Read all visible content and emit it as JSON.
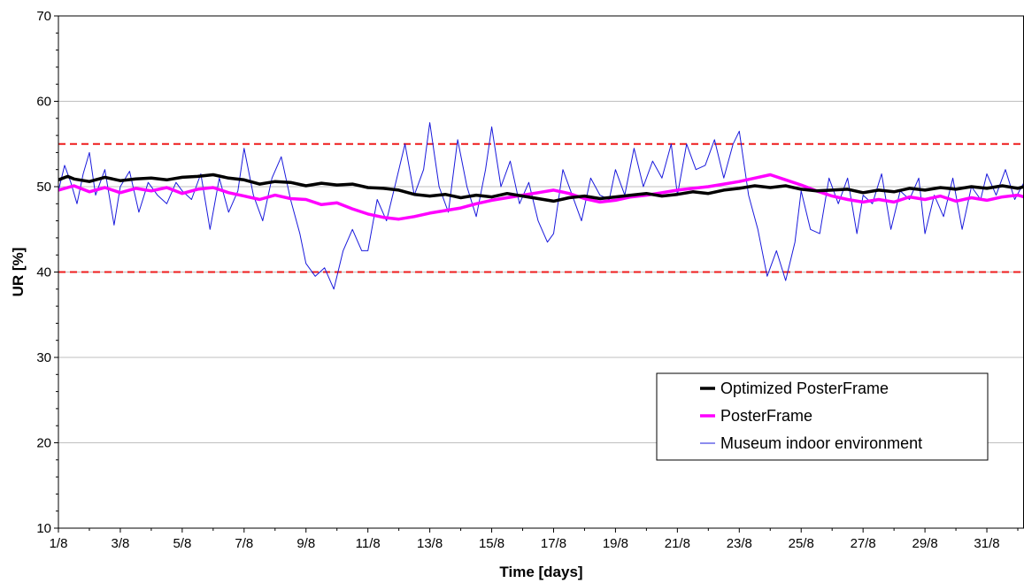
{
  "chart_data": {
    "type": "line",
    "title": "",
    "xlabel": "Time [days]",
    "ylabel": "UR [%]",
    "xlim": [
      1,
      32.2
    ],
    "ylim": [
      10,
      70
    ],
    "yticks": [
      10,
      20,
      30,
      40,
      50,
      60,
      70
    ],
    "x_tick_positions": [
      1,
      3,
      5,
      7,
      9,
      11,
      13,
      15,
      17,
      19,
      21,
      23,
      25,
      27,
      29,
      31
    ],
    "x_tick_labels": [
      "1/8",
      "3/8",
      "5/8",
      "7/8",
      "9/8",
      "11/8",
      "13/8",
      "15/8",
      "17/8",
      "19/8",
      "21/8",
      "23/8",
      "25/8",
      "27/8",
      "29/8",
      "31/8"
    ],
    "grid": "horizontal",
    "legend_position": "lower-right",
    "reference_lines": [
      {
        "y": 55,
        "color": "#ee1c1c",
        "style": "dashed"
      },
      {
        "y": 40,
        "color": "#ee1c1c",
        "style": "dashed"
      }
    ],
    "series": [
      {
        "name": "Optimized PosterFrame",
        "color": "#000000",
        "x": [
          1,
          1.3,
          1.5,
          2,
          2.5,
          3,
          3.5,
          4,
          4.5,
          5,
          5.5,
          6,
          6.5,
          7,
          7.5,
          8,
          8.5,
          9,
          9.5,
          10,
          10.5,
          11,
          11.5,
          12,
          12.5,
          13,
          13.5,
          14,
          14.5,
          15,
          15.5,
          16,
          16.5,
          17,
          17.5,
          18,
          18.5,
          19,
          19.5,
          20,
          20.5,
          21,
          21.5,
          22,
          22.5,
          23,
          23.5,
          24,
          24.5,
          25,
          25.5,
          26,
          26.5,
          27,
          27.5,
          28,
          28.5,
          29,
          29.5,
          30,
          30.5,
          31,
          31.5,
          32,
          32.2
        ],
        "values": [
          50.8,
          51.2,
          50.9,
          50.6,
          51.1,
          50.7,
          50.9,
          51.0,
          50.8,
          51.1,
          51.2,
          51.4,
          51.0,
          50.8,
          50.3,
          50.6,
          50.5,
          50.1,
          50.4,
          50.2,
          50.3,
          49.9,
          49.8,
          49.6,
          49.1,
          48.9,
          49.1,
          48.7,
          49.0,
          48.8,
          49.2,
          48.9,
          48.6,
          48.3,
          48.7,
          48.9,
          48.6,
          48.8,
          49.0,
          49.2,
          48.9,
          49.1,
          49.4,
          49.2,
          49.6,
          49.8,
          50.1,
          49.9,
          50.1,
          49.7,
          49.5,
          49.6,
          49.7,
          49.3,
          49.6,
          49.4,
          49.8,
          49.6,
          49.9,
          49.7,
          50.0,
          49.8,
          50.1,
          49.8,
          50.0
        ]
      },
      {
        "name": "PosterFrame",
        "color": "#ff00ff",
        "x": [
          1,
          1.5,
          2,
          2.5,
          3,
          3.5,
          4,
          4.5,
          5,
          5.5,
          6,
          6.5,
          7,
          7.5,
          8,
          8.5,
          9,
          9.5,
          10,
          10.5,
          11,
          11.5,
          12,
          12.5,
          13,
          13.5,
          14,
          14.5,
          15,
          15.5,
          16,
          16.5,
          17,
          17.5,
          18,
          18.5,
          19,
          19.5,
          20,
          20.5,
          21,
          21.5,
          22,
          22.5,
          23,
          23.5,
          24,
          24.5,
          25,
          25.5,
          26,
          26.5,
          27,
          27.5,
          28,
          28.5,
          29,
          29.5,
          30,
          30.5,
          31,
          31.5,
          32,
          32.2
        ],
        "values": [
          49.6,
          50.1,
          49.4,
          49.9,
          49.3,
          49.8,
          49.5,
          49.9,
          49.2,
          49.7,
          49.9,
          49.3,
          48.9,
          48.5,
          49.0,
          48.6,
          48.5,
          47.9,
          48.1,
          47.4,
          46.8,
          46.4,
          46.2,
          46.5,
          46.9,
          47.2,
          47.5,
          48.0,
          48.4,
          48.7,
          49.0,
          49.3,
          49.6,
          49.2,
          48.6,
          48.2,
          48.4,
          48.8,
          49.0,
          49.3,
          49.6,
          49.8,
          50.0,
          50.3,
          50.6,
          51.0,
          51.4,
          50.8,
          50.2,
          49.5,
          48.9,
          48.5,
          48.2,
          48.5,
          48.2,
          48.8,
          48.5,
          48.9,
          48.3,
          48.7,
          48.4,
          48.8,
          49.0,
          48.8
        ]
      },
      {
        "name": "Museum indoor environment",
        "color": "#1a1adc",
        "x": [
          1,
          1.2,
          1.4,
          1.6,
          1.8,
          2,
          2.2,
          2.5,
          2.8,
          3,
          3.3,
          3.6,
          3.9,
          4.2,
          4.5,
          4.8,
          5,
          5.3,
          5.6,
          5.9,
          6.2,
          6.5,
          6.8,
          7,
          7.3,
          7.6,
          7.9,
          8.2,
          8.5,
          8.8,
          9,
          9.3,
          9.6,
          9.9,
          10.2,
          10.5,
          10.8,
          11,
          11.3,
          11.6,
          11.9,
          12.2,
          12.5,
          12.8,
          13,
          13.3,
          13.6,
          13.9,
          14.2,
          14.5,
          14.8,
          15,
          15.3,
          15.6,
          15.9,
          16.2,
          16.5,
          16.8,
          17,
          17.3,
          17.6,
          17.9,
          18.2,
          18.5,
          18.8,
          19,
          19.3,
          19.6,
          19.9,
          20.2,
          20.5,
          20.8,
          21,
          21.3,
          21.6,
          21.9,
          22.2,
          22.5,
          22.8,
          23,
          23.3,
          23.6,
          23.9,
          24.2,
          24.5,
          24.8,
          25,
          25.3,
          25.6,
          25.9,
          26.2,
          26.5,
          26.8,
          27,
          27.3,
          27.6,
          27.9,
          28.2,
          28.5,
          28.8,
          29,
          29.3,
          29.6,
          29.9,
          30.2,
          30.5,
          30.8,
          31,
          31.3,
          31.6,
          31.9,
          32.2
        ],
        "values": [
          49.5,
          52.5,
          50.5,
          48.0,
          51.5,
          54.0,
          49.0,
          52.0,
          45.5,
          50.0,
          51.8,
          47.0,
          50.5,
          49.0,
          48.0,
          50.5,
          49.5,
          48.5,
          51.5,
          45.0,
          51.0,
          47.0,
          49.5,
          54.5,
          49.0,
          46.0,
          51.0,
          53.5,
          48.5,
          44.5,
          41.0,
          39.5,
          40.5,
          38.0,
          42.5,
          45.0,
          42.5,
          42.5,
          48.5,
          46.0,
          50.5,
          55.0,
          49.0,
          52.0,
          57.5,
          50.0,
          47.0,
          55.5,
          50.0,
          46.5,
          52.0,
          57.0,
          50.0,
          53.0,
          48.0,
          50.5,
          46.0,
          43.5,
          44.5,
          52.0,
          49.0,
          46.0,
          51.0,
          49.0,
          48.5,
          52.0,
          49.0,
          54.5,
          50.0,
          53.0,
          51.0,
          55.0,
          49.0,
          55.0,
          52.0,
          52.5,
          55.5,
          51.0,
          55.0,
          56.5,
          49.0,
          45.0,
          39.5,
          42.5,
          39.0,
          43.5,
          49.5,
          45.0,
          44.5,
          51.0,
          48.0,
          51.0,
          44.5,
          49.0,
          48.0,
          51.5,
          45.0,
          49.5,
          48.5,
          51.0,
          44.5,
          49.0,
          46.5,
          51.0,
          45.0,
          50.0,
          48.5,
          51.5,
          49.0,
          52.0,
          48.5,
          50.5
        ]
      }
    ]
  }
}
